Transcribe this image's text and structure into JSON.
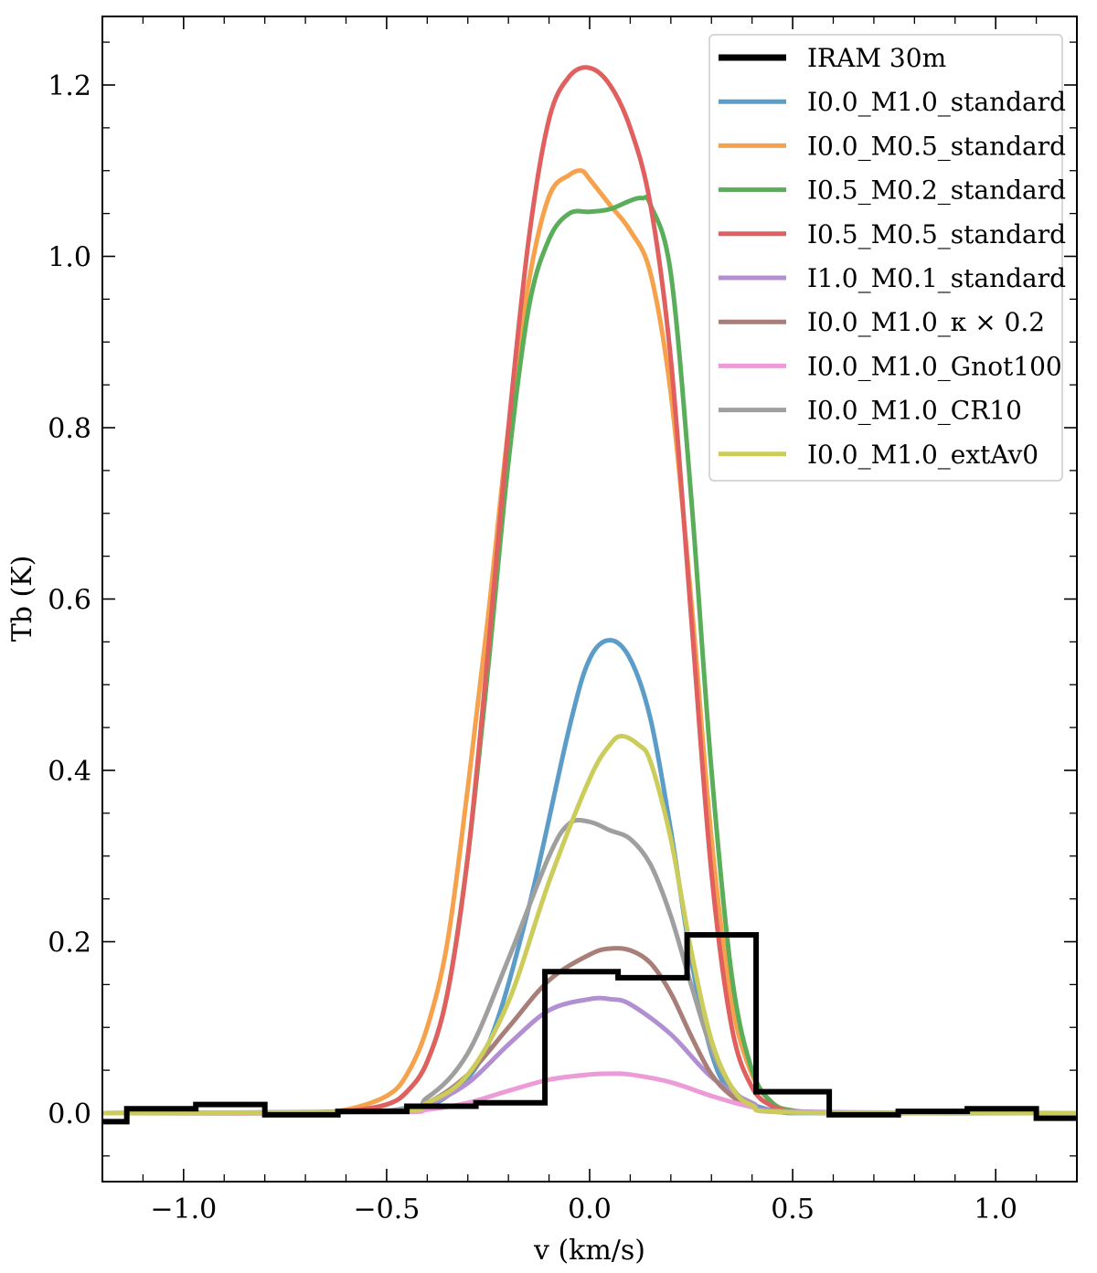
{
  "chart_data": {
    "type": "line",
    "title": "",
    "xlabel": "v (km/s)",
    "ylabel": "Tb (K)",
    "xlim": [
      -1.2,
      1.2
    ],
    "ylim": [
      -0.08,
      1.28
    ],
    "xticks": [
      {
        "value": -1.0,
        "label": "−1.0"
      },
      {
        "value": -0.5,
        "label": "−0.5"
      },
      {
        "value": 0.0,
        "label": "0.0"
      },
      {
        "value": 0.5,
        "label": "0.5"
      },
      {
        "value": 1.0,
        "label": "1.0"
      }
    ],
    "yticks": [
      {
        "value": 0.0,
        "label": "0.0"
      },
      {
        "value": 0.2,
        "label": "0.2"
      },
      {
        "value": 0.4,
        "label": "0.4"
      },
      {
        "value": 0.6,
        "label": "0.6"
      },
      {
        "value": 0.8,
        "label": "0.8"
      },
      {
        "value": 1.0,
        "label": "1.0"
      },
      {
        "value": 1.2,
        "label": "1.2"
      }
    ],
    "grid": false,
    "legend_position": "top-right",
    "observed": {
      "name": "IRAM 30m",
      "style": "step",
      "color": "#000000",
      "edges": [
        -1.23,
        -1.14,
        -0.97,
        -0.8,
        -0.62,
        -0.45,
        -0.28,
        -0.11,
        0.07,
        0.24,
        0.41,
        0.59,
        0.76,
        0.93,
        1.1,
        1.23
      ],
      "values": [
        -0.01,
        0.005,
        0.01,
        -0.002,
        0.002,
        0.008,
        0.012,
        0.165,
        0.158,
        0.208,
        0.025,
        -0.002,
        0.002,
        0.005,
        -0.006
      ]
    },
    "series": [
      {
        "name": "I0.0_M1.0_standard",
        "color": "#5b9cc8",
        "x": [
          -1.2,
          -0.6,
          -0.45,
          -0.35,
          -0.25,
          -0.15,
          -0.05,
          0.0,
          0.05,
          0.1,
          0.15,
          0.2,
          0.25,
          0.3,
          0.35,
          0.45,
          0.6,
          1.2
        ],
        "y": [
          0.0,
          0.001,
          0.006,
          0.02,
          0.08,
          0.24,
          0.45,
          0.53,
          0.552,
          0.53,
          0.46,
          0.33,
          0.18,
          0.07,
          0.025,
          0.003,
          0.0,
          0.0
        ]
      },
      {
        "name": "I0.0_M0.5_standard",
        "color": "#f6a14b",
        "x": [
          -1.2,
          -0.7,
          -0.6,
          -0.5,
          -0.45,
          -0.4,
          -0.35,
          -0.3,
          -0.25,
          -0.2,
          -0.15,
          -0.1,
          -0.05,
          -0.02,
          0.0,
          0.05,
          0.1,
          0.15,
          0.2,
          0.25,
          0.3,
          0.35,
          0.4,
          0.45,
          0.5,
          0.6,
          0.8,
          1.2
        ],
        "y": [
          0.0,
          0.001,
          0.004,
          0.02,
          0.045,
          0.1,
          0.2,
          0.38,
          0.58,
          0.8,
          0.97,
          1.07,
          1.095,
          1.1,
          1.09,
          1.06,
          1.03,
          0.98,
          0.84,
          0.6,
          0.32,
          0.13,
          0.045,
          0.012,
          0.003,
          0.0,
          0.0,
          0.0
        ]
      },
      {
        "name": "I0.5_M0.2_standard",
        "color": "#5aae5a",
        "x": [
          -1.2,
          -0.7,
          -0.6,
          -0.5,
          -0.45,
          -0.4,
          -0.35,
          -0.3,
          -0.25,
          -0.2,
          -0.15,
          -0.1,
          -0.05,
          0.0,
          0.05,
          0.1,
          0.13,
          0.15,
          0.2,
          0.25,
          0.3,
          0.35,
          0.4,
          0.45,
          0.5,
          0.6,
          0.8,
          1.2
        ],
        "y": [
          0.0,
          0.0,
          0.002,
          0.01,
          0.025,
          0.06,
          0.14,
          0.3,
          0.52,
          0.76,
          0.94,
          1.02,
          1.05,
          1.052,
          1.055,
          1.065,
          1.068,
          1.06,
          0.98,
          0.72,
          0.4,
          0.16,
          0.05,
          0.012,
          0.003,
          0.0,
          0.0,
          0.0
        ]
      },
      {
        "name": "I0.5_M0.5_standard",
        "color": "#e06060",
        "x": [
          -1.2,
          -0.7,
          -0.6,
          -0.5,
          -0.45,
          -0.4,
          -0.35,
          -0.3,
          -0.25,
          -0.2,
          -0.15,
          -0.1,
          -0.05,
          0.0,
          0.05,
          0.1,
          0.15,
          0.2,
          0.25,
          0.3,
          0.35,
          0.4,
          0.45,
          0.5,
          0.6,
          0.8,
          1.2
        ],
        "y": [
          0.0,
          0.0,
          0.002,
          0.01,
          0.025,
          0.06,
          0.14,
          0.3,
          0.54,
          0.8,
          1.02,
          1.16,
          1.21,
          1.22,
          1.2,
          1.15,
          1.06,
          0.88,
          0.58,
          0.28,
          0.1,
          0.03,
          0.008,
          0.002,
          0.0,
          0.0,
          0.0
        ]
      },
      {
        "name": "I1.0_M0.1_standard",
        "color": "#b28fd2",
        "x": [
          -1.2,
          -0.5,
          -0.4,
          -0.3,
          -0.2,
          -0.1,
          0.0,
          0.05,
          0.1,
          0.2,
          0.3,
          0.4,
          0.5,
          1.2
        ],
        "y": [
          0.0,
          0.002,
          0.01,
          0.035,
          0.08,
          0.12,
          0.133,
          0.133,
          0.127,
          0.092,
          0.042,
          0.012,
          0.002,
          0.0
        ]
      },
      {
        "name": "I0.0_M1.0_κ × 0.2",
        "color": "#a77f78",
        "x": [
          -1.2,
          -0.5,
          -0.4,
          -0.3,
          -0.2,
          -0.1,
          0.0,
          0.05,
          0.1,
          0.15,
          0.2,
          0.25,
          0.3,
          0.35,
          0.4,
          0.5,
          1.2
        ],
        "y": [
          0.0,
          0.002,
          0.012,
          0.045,
          0.1,
          0.155,
          0.185,
          0.192,
          0.19,
          0.175,
          0.14,
          0.09,
          0.045,
          0.02,
          0.008,
          0.001,
          0.0
        ]
      },
      {
        "name": "I0.0_M1.0_Gnot100",
        "color": "#ec9bd6",
        "x": [
          -1.2,
          -0.5,
          -0.4,
          -0.3,
          -0.2,
          -0.1,
          0.0,
          0.05,
          0.1,
          0.2,
          0.3,
          0.4,
          0.5,
          1.2
        ],
        "y": [
          0.0,
          0.001,
          0.004,
          0.012,
          0.026,
          0.039,
          0.045,
          0.046,
          0.045,
          0.036,
          0.02,
          0.007,
          0.001,
          0.0
        ]
      },
      {
        "name": "I0.0_M1.0_CR10",
        "color": "#9f9f9f",
        "x": [
          -1.2,
          -0.5,
          -0.4,
          -0.3,
          -0.2,
          -0.1,
          -0.05,
          0.0,
          0.05,
          0.1,
          0.15,
          0.2,
          0.25,
          0.3,
          0.35,
          0.4,
          0.5,
          1.2
        ],
        "y": [
          0.0,
          0.003,
          0.018,
          0.07,
          0.18,
          0.3,
          0.338,
          0.34,
          0.33,
          0.32,
          0.29,
          0.23,
          0.15,
          0.075,
          0.03,
          0.01,
          0.001,
          0.0
        ]
      },
      {
        "name": "I0.0_M1.0_extAv0",
        "color": "#cbcc5a",
        "x": [
          -1.2,
          -0.5,
          -0.4,
          -0.3,
          -0.2,
          -0.1,
          0.0,
          0.05,
          0.08,
          0.12,
          0.15,
          0.2,
          0.25,
          0.3,
          0.35,
          0.4,
          0.5,
          1.2
        ],
        "y": [
          0.0,
          0.002,
          0.012,
          0.045,
          0.13,
          0.27,
          0.39,
          0.43,
          0.44,
          0.43,
          0.41,
          0.32,
          0.19,
          0.085,
          0.03,
          0.009,
          0.001,
          0.0
        ]
      }
    ]
  }
}
